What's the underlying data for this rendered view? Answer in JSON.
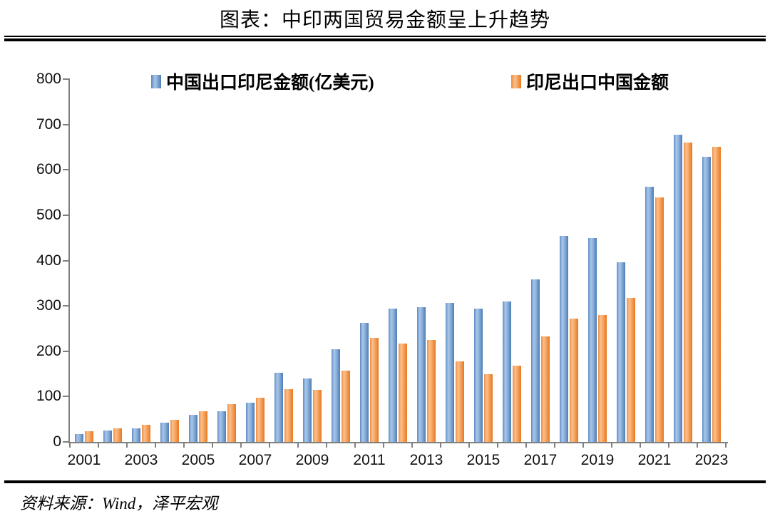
{
  "page": {
    "title": "图表：中印两国贸易金额呈上升趋势",
    "source": "资料来源：Wind，泽平宏观"
  },
  "chart_data": {
    "type": "bar",
    "title": "图表：中印两国贸易金额呈上升趋势",
    "categories": [
      2001,
      2002,
      2003,
      2004,
      2005,
      2006,
      2007,
      2008,
      2009,
      2010,
      2011,
      2012,
      2013,
      2014,
      2015,
      2016,
      2017,
      2018,
      2019,
      2020,
      2021,
      2022,
      2023
    ],
    "series": [
      {
        "name": "中国出口印尼金额(亿美元)",
        "color": "#4F81BD",
        "values": [
          18,
          25,
          30,
          42,
          59,
          68,
          86,
          153,
          140,
          204,
          262,
          294,
          297,
          306,
          294,
          309,
          358,
          455,
          449,
          396,
          562,
          677,
          628
        ]
      },
      {
        "name": "印尼出口中国金额",
        "color": "#ED7D31",
        "values": [
          23,
          30,
          37,
          48,
          67,
          84,
          98,
          116,
          114,
          157,
          230,
          217,
          225,
          177,
          150,
          168,
          232,
          272,
          280,
          317,
          539,
          660,
          650
        ]
      }
    ],
    "ylabel": "",
    "xlabel": "",
    "ylim": [
      0,
      800
    ],
    "y_tick_step": 100,
    "y_tick_labels": [
      "0",
      "100",
      "200",
      "300",
      "400",
      "500",
      "600",
      "700",
      "800"
    ],
    "x_tick_labels": [
      "2001",
      "2003",
      "2005",
      "2007",
      "2009",
      "2011",
      "2013",
      "2015",
      "2017",
      "2019",
      "2021",
      "2023"
    ],
    "legend_position": "top-inside",
    "grid": false,
    "axis_color": "#808080"
  }
}
